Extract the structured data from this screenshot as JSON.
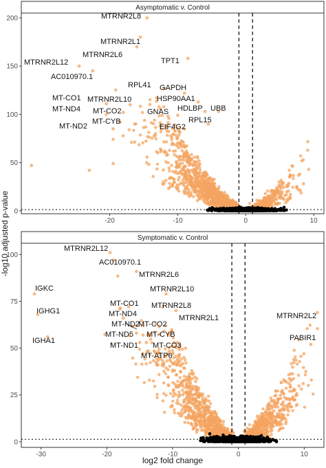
{
  "chart_data": [
    {
      "type": "scatter",
      "panel_title": "Asymptomatic v. Control",
      "xlim": [
        -33,
        11.5
      ],
      "ylim": [
        -3,
        205
      ],
      "x_ticks": [
        -20,
        -10,
        0,
        10
      ],
      "x_tick_labels": [
        "-20",
        "-10",
        "0",
        "10"
      ],
      "y_ticks": [
        0,
        50,
        100,
        150,
        200
      ],
      "y_tick_labels": [
        "0",
        "50",
        "100",
        "150",
        "200"
      ],
      "fold_change_thresholds": [
        -1,
        1
      ],
      "pvalue_threshold": 1.3,
      "colors": {
        "significant": "#f4a460",
        "not_significant": "#000000"
      },
      "labeled_genes": [
        {
          "gene": "MTRNR2L8",
          "x": -14.5,
          "y": 200
        },
        {
          "gene": "MTRNR2L1",
          "x": -15.5,
          "y": 180
        },
        {
          "gene": "MTRNR2L6",
          "x": -16.0,
          "y": 170
        },
        {
          "gene": "MTRNR2L12",
          "x": -24.5,
          "y": 150
        },
        {
          "gene": "AC010970.1",
          "x": -22.5,
          "y": 145
        },
        {
          "gene": "TPT1",
          "x": -8.5,
          "y": 158
        },
        {
          "gene": "RPL41",
          "x": -12.0,
          "y": 127
        },
        {
          "gene": "GAPDH",
          "x": -9.0,
          "y": 122
        },
        {
          "gene": "HSP90AA1",
          "x": -7.0,
          "y": 113
        },
        {
          "gene": "MT-CO1",
          "x": -20.5,
          "y": 111
        },
        {
          "gene": "MTRNR2L10",
          "x": -17.0,
          "y": 110
        },
        {
          "gene": "MT-ND4",
          "x": -20.5,
          "y": 100
        },
        {
          "gene": "MT-CO2",
          "x": -18.0,
          "y": 102
        },
        {
          "gene": "GNAS",
          "x": -10.0,
          "y": 99
        },
        {
          "gene": "HDLBP",
          "x": -6.0,
          "y": 103
        },
        {
          "gene": "UBB",
          "x": -4.0,
          "y": 103
        },
        {
          "gene": "MT-CYB",
          "x": -18.5,
          "y": 92
        },
        {
          "gene": "MT-ND2",
          "x": -19.5,
          "y": 85
        },
        {
          "gene": "RPL15",
          "x": -5.5,
          "y": 90
        },
        {
          "gene": "EIF4G2",
          "x": -9.0,
          "y": 85
        }
      ]
    },
    {
      "type": "scatter",
      "panel_title": "Symptomatic v. Control",
      "xlim": [
        -33,
        13
      ],
      "ylim": [
        -3,
        106
      ],
      "x_ticks": [
        -30,
        -20,
        -10,
        0,
        10
      ],
      "x_tick_labels": [
        "-30",
        "-20",
        "-10",
        "0",
        "10"
      ],
      "y_ticks": [
        0,
        25,
        50,
        75,
        100
      ],
      "y_tick_labels": [
        "0",
        "25",
        "50",
        "75",
        "100"
      ],
      "fold_change_thresholds": [
        -1,
        1
      ],
      "pvalue_threshold": 1.3,
      "colors": {
        "significant": "#f4a460",
        "not_significant": "#000000"
      },
      "labeled_genes": [
        {
          "gene": "MTRNR2L12",
          "x": -19.5,
          "y": 101
        },
        {
          "gene": "AC010970.1",
          "x": -19.0,
          "y": 97
        },
        {
          "gene": "MTRNR2L6",
          "x": -15.5,
          "y": 91
        },
        {
          "gene": "IGKC",
          "x": -31.0,
          "y": 79
        },
        {
          "gene": "MTRNR2L10",
          "x": -11.0,
          "y": 79
        },
        {
          "gene": "IGHG1",
          "x": -30.5,
          "y": 68
        },
        {
          "gene": "MT-CO1",
          "x": -18.0,
          "y": 71
        },
        {
          "gene": "MTRNR2L8",
          "x": -11.5,
          "y": 72
        },
        {
          "gene": "MT-ND4",
          "x": -17.5,
          "y": 66
        },
        {
          "gene": "MTRNR2L1",
          "x": -9.5,
          "y": 70
        },
        {
          "gene": "MTRNR2L2",
          "x": 12.0,
          "y": 69
        },
        {
          "gene": "MT-ND2",
          "x": -15.5,
          "y": 62
        },
        {
          "gene": "MT-CO2",
          "x": -14.5,
          "y": 62
        },
        {
          "gene": "MT-ND5",
          "x": -15.5,
          "y": 58
        },
        {
          "gene": "MT-CYB",
          "x": -14.5,
          "y": 57
        },
        {
          "gene": "IGHA1",
          "x": -29.0,
          "y": 56
        },
        {
          "gene": "PABIR1",
          "x": 11.0,
          "y": 52
        },
        {
          "gene": "MT-ND1",
          "x": -15.0,
          "y": 53
        },
        {
          "gene": "MT-CO3",
          "x": -14.0,
          "y": 53
        },
        {
          "gene": "MT-ATP6",
          "x": -14.5,
          "y": 47
        }
      ]
    }
  ],
  "axes": {
    "xlabel": "log2 fold change",
    "ylabel": "-log10 adjusted p-value"
  }
}
